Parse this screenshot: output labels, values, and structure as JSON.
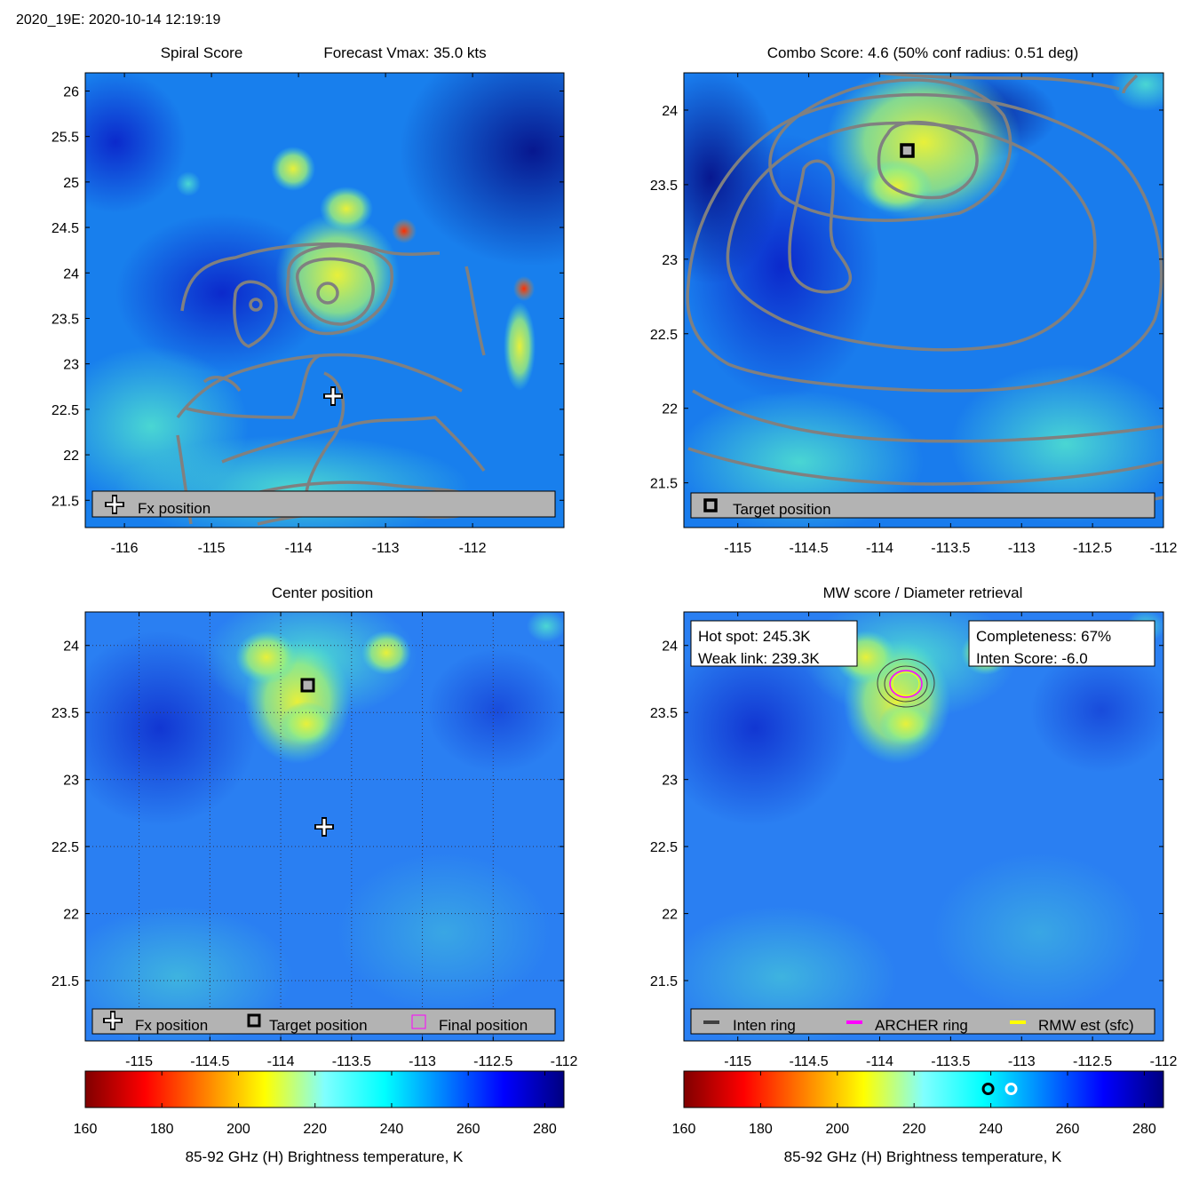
{
  "header": {
    "title": "2020_19E: 2020-10-14 12:19:19"
  },
  "colors": {
    "legend_box": "#b3b3b3",
    "contour": "#808080",
    "grid_line": "#33334d"
  },
  "panels": {
    "spiral": {
      "title_left": "Spiral Score",
      "title_right": "Forecast Vmax: 35.0 kts",
      "legend": [
        {
          "symbol": "plus-icon",
          "label": "Fx position"
        }
      ]
    },
    "combo": {
      "title": "Combo Score: 4.6  (50% conf radius: 0.51 deg)",
      "legend": [
        {
          "symbol": "square-icon",
          "label": "Target position"
        }
      ]
    },
    "center": {
      "title": "Center position",
      "legend": [
        {
          "symbol": "plus-icon",
          "label": "Fx position"
        },
        {
          "symbol": "square-icon",
          "label": "Target position"
        },
        {
          "symbol": "magenta-square-icon",
          "label": "Final position"
        }
      ]
    },
    "mw": {
      "title": "MW score / Diameter retrieval",
      "info_left": [
        "Hot spot: 245.3K",
        "Weak link: 239.3K"
      ],
      "info_right": [
        "Completeness: 67%",
        "Inten Score: -6.0"
      ],
      "legend": [
        {
          "symbol": "line-dark",
          "label": "Inten ring",
          "color": "#404040"
        },
        {
          "symbol": "line-magenta",
          "label": "ARCHER ring",
          "color": "#ff00ff"
        },
        {
          "symbol": "line-yellow",
          "label": "RMW est (sfc)",
          "color": "#ffff00"
        }
      ]
    }
  },
  "chart_data": [
    {
      "type": "heatmap",
      "panel": "spiral",
      "title": "Spiral Score   Forecast Vmax: 35.0 kts",
      "xlim": [
        -116.45,
        -110.95
      ],
      "ylim": [
        21.2,
        26.2
      ],
      "xticks": [
        -116,
        -115,
        -114,
        -113,
        -112
      ],
      "xtick_labels": [
        "-116",
        "-115",
        "-114",
        "-113",
        "-112"
      ],
      "yticks": [
        21.5,
        22,
        22.5,
        23,
        23.5,
        24,
        24.5,
        25,
        25.5,
        26
      ],
      "ytick_labels": [
        "21.5",
        "22",
        "22.5",
        "23",
        "23.5",
        "24",
        "24.5",
        "25",
        "25.5",
        "26"
      ],
      "markers": [
        {
          "name": "Fx position",
          "lon": -113.65,
          "lat": 22.65
        }
      ]
    },
    {
      "type": "heatmap",
      "panel": "combo",
      "title": "Combo Score: 4.6  (50% conf radius: 0.51 deg)",
      "xlim": [
        -115.38,
        -112
      ],
      "ylim": [
        21.2,
        24.25
      ],
      "xticks": [
        -115,
        -114.5,
        -114,
        -113.5,
        -113,
        -112.5,
        -112
      ],
      "xtick_labels": [
        "-115",
        "-114.5",
        "-114",
        "-113.5",
        "-113",
        "-112.5",
        "-112"
      ],
      "yticks": [
        21.5,
        22,
        22.5,
        23,
        23.5,
        24
      ],
      "ytick_labels": [
        "21.5",
        "22",
        "22.5",
        "23",
        "23.5",
        "24"
      ],
      "markers": [
        {
          "name": "Target position",
          "lon": -113.76,
          "lat": 23.7
        }
      ]
    },
    {
      "type": "heatmap",
      "panel": "center",
      "title": "Center position",
      "xlim": [
        -115.38,
        -112
      ],
      "ylim": [
        21.05,
        24.25
      ],
      "xticks": [
        -115,
        -114.5,
        -114,
        -113.5,
        -113,
        -112.5,
        -112
      ],
      "xtick_labels": [
        "-115",
        "-114.5",
        "-114",
        "-113.5",
        "-113",
        "-112.5",
        "-112"
      ],
      "yticks": [
        21.5,
        22,
        22.5,
        23,
        23.5,
        24
      ],
      "ytick_labels": [
        "21.5",
        "22",
        "22.5",
        "23",
        "23.5",
        "24"
      ],
      "grid": true,
      "markers": [
        {
          "name": "Fx position",
          "lon": -113.65,
          "lat": 22.65
        },
        {
          "name": "Target position",
          "lon": -113.76,
          "lat": 23.7
        }
      ]
    },
    {
      "type": "heatmap",
      "panel": "mw",
      "title": "MW score / Diameter retrieval",
      "xlim": [
        -115.38,
        -112
      ],
      "ylim": [
        21.05,
        24.25
      ],
      "xticks": [
        -115,
        -114.5,
        -114,
        -113.5,
        -113,
        -112.5,
        -112
      ],
      "xtick_labels": [
        "-115",
        "-114.5",
        "-114",
        "-113.5",
        "-113",
        "-112.5",
        "-112"
      ],
      "yticks": [
        21.5,
        22,
        22.5,
        23,
        23.5,
        24
      ],
      "ytick_labels": [
        "21.5",
        "22",
        "22.5",
        "23",
        "23.5",
        "24"
      ],
      "rings": [
        {
          "name": "ARCHER ring",
          "lon": -113.76,
          "lat": 23.7
        }
      ]
    },
    {
      "type": "colorbar",
      "panel": "colorbar-left",
      "range": [
        160,
        285
      ],
      "ticks": [
        160,
        180,
        200,
        220,
        240,
        260,
        280
      ],
      "label": "85-92 GHz (H) Brightness temperature, K"
    },
    {
      "type": "colorbar",
      "panel": "colorbar-right",
      "range": [
        160,
        285
      ],
      "ticks": [
        160,
        180,
        200,
        220,
        240,
        260,
        280
      ],
      "label": "85-92 GHz (H) Brightness temperature, K",
      "markers": [
        {
          "name": "Weak link",
          "value": 239.3,
          "color": "#000000"
        },
        {
          "name": "Hot spot",
          "value": 245.3,
          "color": "#ffffff"
        }
      ]
    }
  ]
}
